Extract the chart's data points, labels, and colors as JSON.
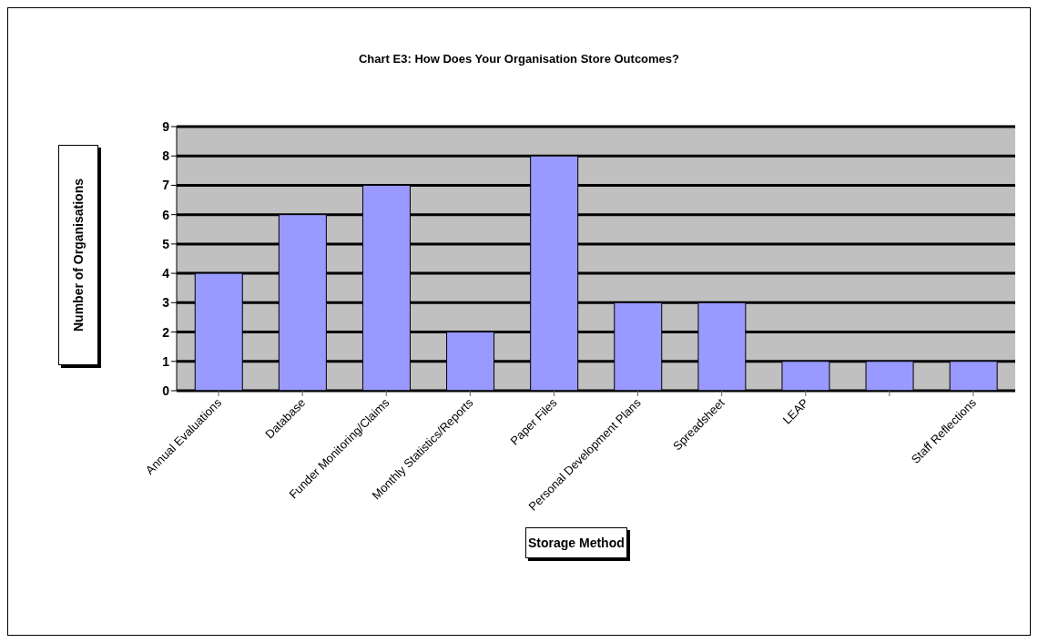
{
  "chart_data": {
    "type": "bar",
    "title": "Chart E3:  How Does Your Organisation Store Outcomes?",
    "xlabel": "Storage Method",
    "ylabel": "Number of Organisations",
    "categories": [
      "Annual Evaluations",
      "Database",
      "Funder Monitoring/Claims",
      "Monthly Statistics/Reports",
      "Paper Files",
      "Personal Development Plans",
      "Spreadsheet",
      "LEAP",
      null,
      "Staff Reflections"
    ],
    "values": [
      4,
      6,
      7,
      2,
      8,
      3,
      3,
      1,
      1,
      1
    ],
    "color": "#9999ff",
    "ylim": [
      0,
      9
    ],
    "yticks": [
      0,
      1,
      2,
      3,
      4,
      5,
      6,
      7,
      8,
      9
    ],
    "grid": "y"
  }
}
